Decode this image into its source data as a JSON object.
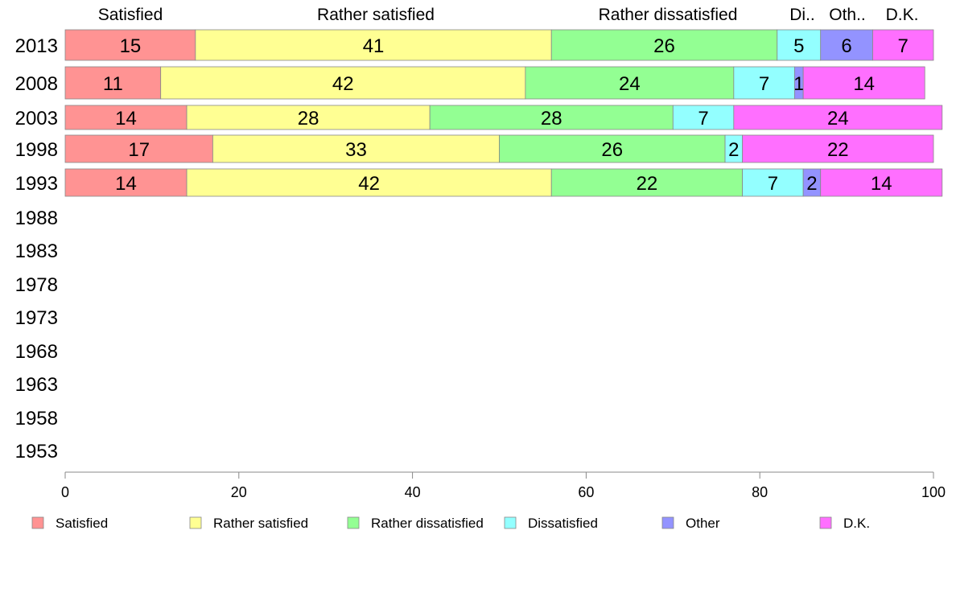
{
  "chart_data": {
    "type": "bar",
    "orientation": "horizontal",
    "stacked": true,
    "categories": [
      "2013",
      "2008",
      "2003",
      "1998",
      "1993",
      "1988",
      "1983",
      "1978",
      "1973",
      "1968",
      "1963",
      "1958",
      "1953"
    ],
    "series": [
      {
        "name": "Satisfied",
        "color": "#ff9393",
        "values": [
          15,
          11,
          14,
          17,
          14,
          null,
          null,
          null,
          null,
          null,
          null,
          null,
          null
        ]
      },
      {
        "name": "Rather satisfied",
        "color": "#ffff93",
        "values": [
          41,
          42,
          28,
          33,
          42,
          null,
          null,
          null,
          null,
          null,
          null,
          null,
          null
        ]
      },
      {
        "name": "Rather dissatisfied",
        "color": "#93ff93",
        "values": [
          26,
          24,
          28,
          26,
          22,
          null,
          null,
          null,
          null,
          null,
          null,
          null,
          null
        ]
      },
      {
        "name": "Dissatisfied",
        "color": "#93ffff",
        "values": [
          5,
          7,
          7,
          2,
          7,
          null,
          null,
          null,
          null,
          null,
          null,
          null,
          null
        ]
      },
      {
        "name": "Other",
        "color": "#9393ff",
        "values": [
          6,
          1,
          0,
          0,
          2,
          null,
          null,
          null,
          null,
          null,
          null,
          null,
          null
        ]
      },
      {
        "name": "D.K.",
        "color": "#ff6fff",
        "values": [
          7,
          14,
          24,
          22,
          14,
          null,
          null,
          null,
          null,
          null,
          null,
          null,
          null
        ]
      }
    ],
    "column_headers": [
      "Satisfied",
      "Rather satisfied",
      "Rather dissatisfied",
      "Di..",
      "Oth..",
      "D.K."
    ],
    "xlim": [
      0,
      100
    ],
    "x_ticks": [
      "0",
      "20",
      "40",
      "60",
      "80",
      "100"
    ],
    "legend_position": "bottom",
    "grid": false
  }
}
